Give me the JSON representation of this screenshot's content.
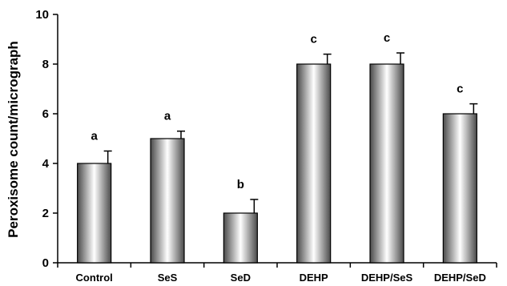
{
  "chart_data": {
    "type": "bar",
    "title": "",
    "xlabel": "",
    "ylabel": "Peroxisome count/micrograph",
    "ylim": [
      0,
      10
    ],
    "yticks": [
      0,
      2,
      4,
      6,
      8,
      10
    ],
    "grid": false,
    "legend": "none",
    "categories": [
      "Control",
      "SeS",
      "SeD",
      "DEHP",
      "DEHP/SeS",
      "DEHP/SeD"
    ],
    "values": [
      4.0,
      5.0,
      2.0,
      8.0,
      8.0,
      6.0
    ],
    "errors": [
      0.5,
      0.3,
      0.55,
      0.4,
      0.45,
      0.4
    ],
    "significance_labels": [
      "a",
      "a",
      "b",
      "c",
      "c",
      "c"
    ],
    "bar_fill": "cylindrical gray gradient",
    "colors": {
      "bar_dark": "#555555",
      "bar_light": "#ffffff",
      "axis": "#000000"
    }
  }
}
